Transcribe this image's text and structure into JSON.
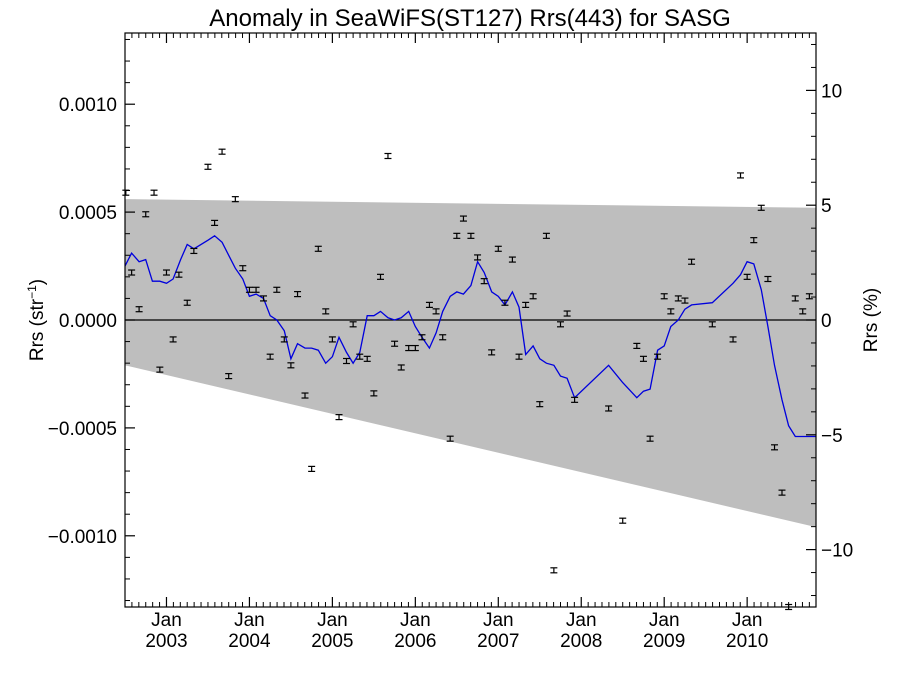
{
  "chart_data": {
    "type": "scatter",
    "title": "Anomaly in SeaWiFS(ST127) Rrs(443) for SASG",
    "ylabel_left": {
      "base": "Rrs (str",
      "sup": "−1",
      "close": ")"
    },
    "ylabel_right": "Rrs (%)",
    "xlabel": "",
    "xlim": [
      2002.5,
      2010.83
    ],
    "ylim_left": [
      -0.00133,
      0.00133
    ],
    "ylim_right": [
      -12.5,
      12.5
    ],
    "left_ticks": [
      {
        "value": 0.001,
        "label": "0.0010"
      },
      {
        "value": 0.0005,
        "label": "0.0005"
      },
      {
        "value": 0,
        "label": "0.0000"
      },
      {
        "value": -0.0005,
        "label": "−0.0005"
      },
      {
        "value": -0.001,
        "label": "−0.0010"
      }
    ],
    "right_ticks": [
      {
        "value": 10,
        "label": "10"
      },
      {
        "value": 5,
        "label": "5"
      },
      {
        "value": 0,
        "label": "0"
      },
      {
        "value": -5,
        "label": "−5"
      },
      {
        "value": -10,
        "label": "−10"
      }
    ],
    "x_ticks": [
      {
        "value": 2003.0,
        "month": "Jan",
        "year": "2003"
      },
      {
        "value": 2004.0,
        "month": "Jan",
        "year": "2004"
      },
      {
        "value": 2005.0,
        "month": "Jan",
        "year": "2005"
      },
      {
        "value": 2006.0,
        "month": "Jan",
        "year": "2006"
      },
      {
        "value": 2007.0,
        "month": "Jan",
        "year": "2007"
      },
      {
        "value": 2008.0,
        "month": "Jan",
        "year": "2008"
      },
      {
        "value": 2009.0,
        "month": "Jan",
        "year": "2009"
      },
      {
        "value": 2010.0,
        "month": "Jan",
        "year": "2010"
      }
    ],
    "band": {
      "x": [
        2002.5,
        2010.83
      ],
      "upper": [
        0.00056,
        0.00052
      ],
      "lower": [
        -0.00021,
        -0.00096
      ]
    },
    "zero_line": true,
    "colors": {
      "band": "#bebebe",
      "line": "#0000dd",
      "points": "#000000"
    },
    "points": {
      "x": [
        2002.51,
        2002.58,
        2002.67,
        2002.75,
        2002.85,
        2002.92,
        2003.0,
        2003.08,
        2003.15,
        2003.25,
        2003.33,
        2003.5,
        2003.58,
        2003.67,
        2003.75,
        2003.83,
        2003.92,
        2004.0,
        2004.08,
        2004.17,
        2004.25,
        2004.33,
        2004.42,
        2004.5,
        2004.58,
        2004.67,
        2004.75,
        2004.83,
        2004.92,
        2005.0,
        2005.08,
        2005.17,
        2005.25,
        2005.33,
        2005.42,
        2005.5,
        2005.58,
        2005.67,
        2005.75,
        2005.83,
        2005.92,
        2006.0,
        2006.08,
        2006.17,
        2006.25,
        2006.33,
        2006.42,
        2006.5,
        2006.58,
        2006.67,
        2006.75,
        2006.83,
        2006.92,
        2007.0,
        2007.08,
        2007.17,
        2007.25,
        2007.33,
        2007.42,
        2007.5,
        2007.58,
        2007.67,
        2007.75,
        2007.83,
        2007.92,
        2008.33,
        2008.5,
        2008.67,
        2008.75,
        2008.83,
        2008.92,
        2009.0,
        2009.08,
        2009.17,
        2009.25,
        2009.33,
        2009.58,
        2009.83,
        2009.92,
        2010.0,
        2010.08,
        2010.17,
        2010.25,
        2010.33,
        2010.42,
        2010.5,
        2010.58,
        2010.67,
        2010.75
      ],
      "y": [
        0.00059,
        0.00022,
        5e-05,
        0.00049,
        0.00059,
        -0.00023,
        0.00022,
        -9e-05,
        0.00021,
        8e-05,
        0.00032,
        0.00071,
        0.00045,
        0.00078,
        -0.00026,
        0.00056,
        0.00024,
        0.00014,
        0.00014,
        0.0001,
        -0.00017,
        0.00014,
        -9e-05,
        -0.00021,
        0.00012,
        -0.00035,
        -0.00069,
        0.00033,
        4e-05,
        -9e-05,
        -0.00045,
        -0.00019,
        -2e-05,
        -0.00017,
        -0.00018,
        -0.00034,
        0.0002,
        0.00076,
        -0.00011,
        -0.00022,
        -0.00013,
        -0.00013,
        -8e-05,
        7e-05,
        4e-05,
        -8e-05,
        -0.00055,
        0.00039,
        0.00047,
        0.00039,
        0.00029,
        0.00018,
        -0.00015,
        0.00033,
        8e-05,
        0.00028,
        -0.00017,
        7e-05,
        0.00011,
        -0.00039,
        0.00039,
        -0.00116,
        -2e-05,
        3e-05,
        -0.00037,
        -0.00041,
        -0.00093,
        -0.00012,
        -0.00018,
        -0.00055,
        -0.00017,
        0.00011,
        4e-05,
        0.0001,
        9e-05,
        0.00027,
        -2e-05,
        -9e-05,
        0.00067,
        0.0002,
        0.00037,
        0.00052,
        0.00019,
        -0.00059,
        -0.0008,
        -0.00133,
        0.0001,
        4e-05,
        0.00011
      ]
    },
    "line": {
      "x": [
        2002.5,
        2002.58,
        2002.67,
        2002.75,
        2002.83,
        2002.92,
        2003.0,
        2003.08,
        2003.17,
        2003.25,
        2003.33,
        2003.5,
        2003.58,
        2003.67,
        2003.75,
        2003.83,
        2003.92,
        2004.0,
        2004.08,
        2004.17,
        2004.25,
        2004.33,
        2004.42,
        2004.5,
        2004.58,
        2004.67,
        2004.75,
        2004.83,
        2004.92,
        2005.0,
        2005.08,
        2005.17,
        2005.25,
        2005.33,
        2005.42,
        2005.5,
        2005.58,
        2005.67,
        2005.75,
        2005.83,
        2005.92,
        2006.0,
        2006.08,
        2006.17,
        2006.25,
        2006.33,
        2006.42,
        2006.5,
        2006.58,
        2006.67,
        2006.75,
        2006.83,
        2006.92,
        2007.0,
        2007.08,
        2007.17,
        2007.25,
        2007.33,
        2007.42,
        2007.5,
        2007.58,
        2007.67,
        2007.75,
        2007.83,
        2007.92,
        2008.33,
        2008.5,
        2008.67,
        2008.75,
        2008.83,
        2008.92,
        2009.0,
        2009.08,
        2009.17,
        2009.25,
        2009.33,
        2009.58,
        2009.83,
        2009.92,
        2010.0,
        2010.08,
        2010.17,
        2010.25,
        2010.33,
        2010.42,
        2010.5,
        2010.58,
        2010.67,
        2010.75,
        2010.83
      ],
      "y": [
        0.00025,
        0.00031,
        0.00027,
        0.00028,
        0.00018,
        0.00018,
        0.00017,
        0.00019,
        0.00028,
        0.00035,
        0.00033,
        0.00037,
        0.00039,
        0.00036,
        0.0003,
        0.00024,
        0.00019,
        0.00011,
        0.00012,
        0.0001,
        2e-05,
        0.0,
        -5e-05,
        -0.00018,
        -0.00011,
        -0.00013,
        -0.00013,
        -0.00014,
        -0.0002,
        -0.00017,
        -8e-05,
        -0.00015,
        -0.0002,
        -0.00015,
        2e-05,
        2e-05,
        4e-05,
        1e-05,
        0.0,
        1e-05,
        4e-05,
        -3e-05,
        -8e-05,
        -0.00013,
        -6e-05,
        4e-05,
        0.00011,
        0.00013,
        0.00012,
        0.00016,
        0.00027,
        0.00022,
        0.00013,
        0.00011,
        7e-05,
        0.00013,
        6e-05,
        -0.00016,
        -0.00012,
        -0.00018,
        -0.0002,
        -0.00021,
        -0.00026,
        -0.00027,
        -0.00036,
        -0.00021,
        -0.00029,
        -0.00036,
        -0.00033,
        -0.00032,
        -0.00014,
        -0.00012,
        -3e-05,
        0.0,
        5e-05,
        7e-05,
        8e-05,
        0.00017,
        0.00021,
        0.00027,
        0.00026,
        0.00014,
        -3e-05,
        -0.00021,
        -0.00037,
        -0.00049,
        -0.00054,
        -0.00054,
        -0.00054,
        -0.00054
      ]
    }
  }
}
